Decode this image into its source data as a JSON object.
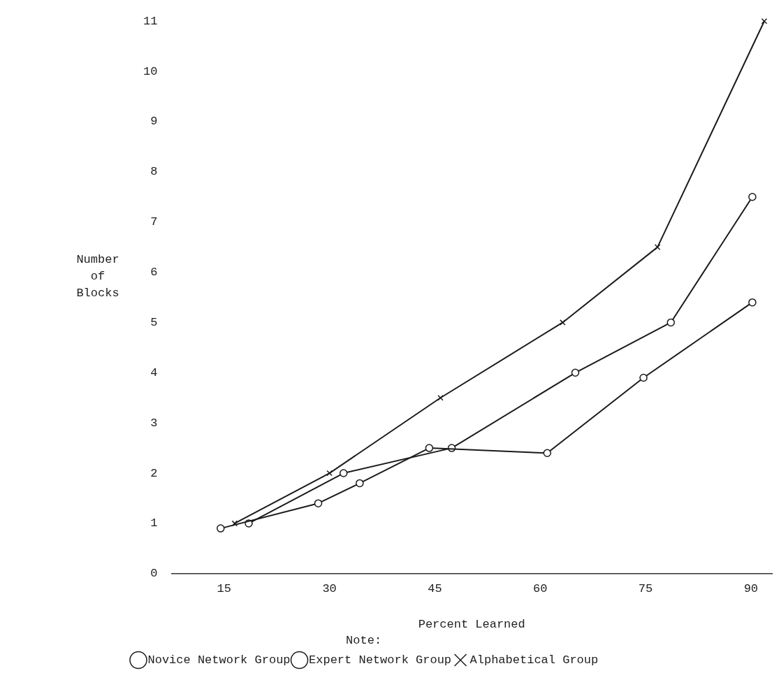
{
  "chart_data": {
    "type": "line",
    "xlabel": "Percent Learned",
    "ylabel": "Number of Blocks",
    "legend_title": "Note:",
    "legend": "bottom",
    "grid": false,
    "line_style": "solid",
    "xlim": [
      7.5,
      93
    ],
    "xticks": [
      15,
      30,
      45,
      60,
      75,
      90
    ],
    "ylim": [
      0,
      11
    ],
    "yticks": [
      0,
      1,
      2,
      3,
      4,
      5,
      6,
      7,
      8,
      9,
      10,
      11
    ],
    "series": [
      {
        "name": "Novice Network Group",
        "color": "#1a1a1a",
        "marker": "circle",
        "x": [
          14.5,
          28.4,
          34.3,
          44.2,
          61,
          74.7,
          90.2
        ],
        "values": [
          0.9,
          1.4,
          1.8,
          2.5,
          2.4,
          3.9,
          5.4
        ]
      },
      {
        "name": "Expert Network Group",
        "color": "#1a1a1a",
        "marker": "circle",
        "x": [
          18.5,
          32,
          47.4,
          65,
          78.6,
          90.2
        ],
        "values": [
          1,
          2,
          2.5,
          4,
          5,
          7.5
        ]
      },
      {
        "name": "Alphabetical Group",
        "color": "#1a1a1a",
        "marker": "cross",
        "x": [
          16.5,
          30,
          45.8,
          63.2,
          76.7,
          91.9
        ],
        "values": [
          1,
          2,
          3.5,
          5,
          6.5,
          11
        ]
      }
    ]
  }
}
